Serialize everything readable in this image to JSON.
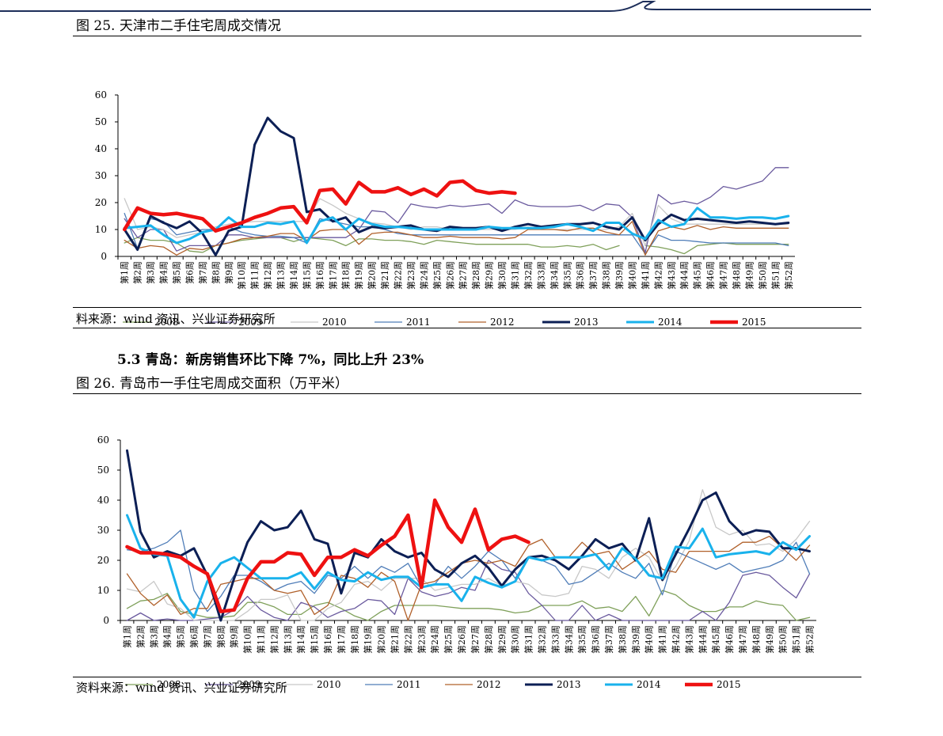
{
  "fig25": {
    "title": "图 25. 天津市二手住宅周成交情况",
    "source": "料来源：wind 资讯、兴业证券研究所"
  },
  "section": {
    "heading": "5.3 青岛：新房销售环比下降 7%，同比上升 23%"
  },
  "fig26": {
    "title": "图 26. 青岛市一手住宅周成交面积（万平米）",
    "source": "资料来源：wind 资讯、兴业证券研究所"
  },
  "colors": {
    "2008": "#7fa05a",
    "2009": "#6a5a9e",
    "2010": "#c8c8c8",
    "2011": "#4f7db8",
    "2012": "#b0602a",
    "2013": "#0c1f55",
    "2014": "#19b2ec",
    "2015": "#ee1111"
  },
  "chart_data": [
    {
      "type": "line",
      "title": "天津市二手住宅周成交情况",
      "categories": [
        "第1周",
        "第2周",
        "第3周",
        "第4周",
        "第5周",
        "第6周",
        "第7周",
        "第8周",
        "第9周",
        "第10周",
        "第11周",
        "第12周",
        "第13周",
        "第14周",
        "第15周",
        "第16周",
        "第17周",
        "第18周",
        "第19周",
        "第20周",
        "第21周",
        "第22周",
        "第23周",
        "第24周",
        "第25周",
        "第26周",
        "第27周",
        "第28周",
        "第29周",
        "第30周",
        "第31周",
        "第32周",
        "第33周",
        "第34周",
        "第35周",
        "第36周",
        "第37周",
        "第38周",
        "第39周",
        "第40周",
        "第41周",
        "第42周",
        "第43周",
        "第44周",
        "第45周",
        "第46周",
        "第47周",
        "第48周",
        "第49周",
        "第50周",
        "第51周",
        "第52周"
      ],
      "ylim": [
        0,
        60
      ],
      "yticks": [
        0,
        10,
        20,
        30,
        40,
        50,
        60
      ],
      "legend_position": "bottom",
      "series": [
        {
          "name": "2008",
          "values": [
            5,
            7,
            6,
            6,
            5,
            2,
            1.5,
            4,
            5,
            6,
            6.5,
            7,
            7,
            5.5,
            7,
            6.5,
            6,
            4,
            6.5,
            6.5,
            6,
            6,
            5.5,
            4.5,
            6,
            5.5,
            5,
            4.5,
            4.5,
            4.5,
            4.5,
            4.5,
            3.5,
            3.5,
            4,
            3.5,
            4.5,
            2.5,
            4,
            null,
            4,
            3.5,
            2.5,
            1,
            4,
            4.5,
            5,
            4.5,
            4.5,
            4.5,
            4.5,
            4.5
          ]
        },
        {
          "name": "2009",
          "values": [
            14,
            7,
            10,
            10,
            2,
            4,
            4,
            4,
            8,
            8,
            7,
            7,
            7,
            7,
            7,
            7,
            7,
            7,
            10,
            17,
            16.5,
            12.5,
            19.5,
            18.5,
            18,
            19,
            18.5,
            19,
            19.5,
            16,
            21,
            19,
            18.5,
            18.5,
            18.5,
            19,
            17,
            19.5,
            19,
            14.5,
            1.5,
            23,
            19.5,
            20.5,
            19.5,
            22,
            26,
            25,
            26.5,
            28,
            33,
            33
          ]
        },
        {
          "name": "2010",
          "values": [
            21.5,
            10,
            11,
            10,
            7,
            8,
            9,
            11,
            12,
            12.5,
            13,
            13,
            13,
            13,
            13,
            21.5,
            19,
            16,
            14,
            12.5,
            12,
            11,
            10,
            11,
            11,
            10,
            10,
            10,
            10,
            10,
            10,
            11,
            10,
            10,
            10,
            10,
            10,
            10,
            11,
            16,
            4,
            19,
            14,
            12,
            12,
            12,
            12,
            12,
            12,
            12,
            12,
            12
          ]
        },
        {
          "name": "2011",
          "values": [
            16,
            3,
            14,
            13,
            8,
            9,
            10,
            10,
            11,
            9,
            8,
            7.5,
            7.5,
            7,
            5,
            14,
            13,
            12,
            11,
            11,
            10,
            8.5,
            8,
            8,
            8,
            8,
            8,
            8,
            8,
            8,
            8,
            8,
            8,
            8,
            8,
            8,
            8,
            8,
            8,
            8,
            1,
            8,
            6,
            6,
            5.5,
            5,
            5,
            5,
            5,
            5,
            5,
            4
          ]
        },
        {
          "name": "2012",
          "values": [
            6,
            3,
            4,
            3.5,
            0.5,
            3,
            2.5,
            4,
            5,
            6.5,
            7,
            7.5,
            8.5,
            8.5,
            6,
            9.5,
            10,
            10,
            4.5,
            8.5,
            9,
            9,
            8,
            7,
            7,
            7.5,
            7,
            7,
            7,
            6.5,
            7,
            10,
            10,
            10,
            9.5,
            10.5,
            10.5,
            9,
            8,
            13,
            0.5,
            9.5,
            11,
            10,
            11.5,
            10,
            11,
            10.5,
            10.5,
            10.5,
            10.5,
            10.5
          ]
        },
        {
          "name": "2013",
          "values": [
            10,
            2.5,
            15,
            12.5,
            10.5,
            13,
            8.5,
            0.5,
            9.5,
            11,
            41.5,
            51.5,
            46.5,
            44,
            16.5,
            17.5,
            13,
            14.5,
            9,
            11,
            10.5,
            11,
            11.5,
            10,
            9.5,
            11,
            10.5,
            10.5,
            11,
            9.5,
            11,
            12,
            11,
            11.5,
            12,
            12,
            12.5,
            11,
            10,
            14.5,
            6,
            12,
            15.5,
            13.5,
            14,
            13.5,
            13,
            12.5,
            13,
            12.5,
            12,
            12.5
          ]
        },
        {
          "name": "2014",
          "values": [
            10.5,
            11,
            11.5,
            8,
            5,
            6.5,
            9,
            10,
            14.5,
            11,
            11,
            12.5,
            12,
            13,
            5,
            13,
            14.5,
            10,
            14,
            12,
            11,
            11,
            10.5,
            10,
            10,
            10,
            10,
            10,
            11,
            10.5,
            10.5,
            10.5,
            10.5,
            11,
            12,
            11,
            9.5,
            12.5,
            12.5,
            8.5,
            6.5,
            13.5,
            11,
            12,
            18,
            14.5,
            14.5,
            14,
            14.5,
            14.5,
            14,
            15
          ]
        },
        {
          "name": "2015",
          "values": [
            10,
            18,
            16,
            15.5,
            16,
            15,
            14,
            9.5,
            11,
            12.5,
            14.5,
            16,
            18,
            18.5,
            12.5,
            24.5,
            25,
            19.5,
            27.5,
            24,
            24,
            25.5,
            23,
            25,
            22.5,
            27.5,
            28,
            24.5,
            23.5,
            24,
            23.5,
            null,
            null,
            null,
            null,
            null,
            null,
            null,
            null,
            null,
            null,
            null,
            null,
            null,
            null,
            null,
            null,
            null,
            null,
            null,
            null,
            null
          ]
        }
      ]
    },
    {
      "type": "line",
      "title": "青岛市一手住宅周成交面积（万平米）",
      "categories": [
        "第1周",
        "第2周",
        "第3周",
        "第4周",
        "第5周",
        "第6周",
        "第7周",
        "第8周",
        "第9周",
        "第10周",
        "第11周",
        "第12周",
        "第13周",
        "第14周",
        "第15周",
        "第16周",
        "第17周",
        "第18周",
        "第19周",
        "第20周",
        "第21周",
        "第22周",
        "第23周",
        "第24周",
        "第25周",
        "第26周",
        "第27周",
        "第28周",
        "第29周",
        "第30周",
        "第31周",
        "第32周",
        "第33周",
        "第34周",
        "第35周",
        "第36周",
        "第37周",
        "第38周",
        "第39周",
        "第40周",
        "第41周",
        "第42周",
        "第43周",
        "第44周",
        "第45周",
        "第46周",
        "第47周",
        "第48周",
        "第49周",
        "第50周",
        "第51周",
        "第52周"
      ],
      "ylim": [
        0,
        60
      ],
      "yticks": [
        0,
        10,
        20,
        30,
        40,
        50,
        60
      ],
      "legend_position": "bottom",
      "series": [
        {
          "name": "2008",
          "values": [
            4,
            6.5,
            7,
            9,
            3,
            2,
            1,
            1,
            1.5,
            6,
            6,
            4.5,
            2,
            2,
            5,
            6,
            4,
            1.5,
            0,
            3,
            5,
            5,
            5,
            5,
            4.5,
            4,
            4,
            4,
            3.5,
            2.5,
            3,
            5,
            5,
            5,
            6.5,
            4,
            4.5,
            3,
            8,
            1.5,
            10,
            8.5,
            5,
            3,
            3,
            4.5,
            4.5,
            6.5,
            5.5,
            5,
            0,
            1
          ]
        },
        {
          "name": "2009",
          "values": [
            0,
            2.5,
            0,
            0.5,
            0,
            0,
            0.5,
            1,
            3.5,
            8,
            3.5,
            1,
            0,
            6,
            4.5,
            1,
            3,
            4,
            7,
            6.5,
            2,
            14,
            9.5,
            8,
            9,
            11,
            10,
            20,
            17,
            16,
            9,
            5,
            0,
            0,
            5,
            0,
            2,
            0,
            0,
            0,
            0,
            0,
            0,
            3,
            0,
            6,
            15,
            16,
            15,
            11,
            7.5,
            15.5
          ]
        },
        {
          "name": "2010",
          "values": [
            10.5,
            9.5,
            13,
            5.5,
            4,
            0,
            0,
            0,
            0,
            3,
            7,
            7,
            8.5,
            0,
            0,
            4,
            6,
            12,
            13,
            10,
            14,
            14,
            14,
            10,
            11,
            12,
            12,
            14,
            11.5,
            13,
            12,
            8.5,
            8,
            9,
            18,
            17,
            14,
            21,
            24,
            21,
            13,
            18,
            26.5,
            43.5,
            31,
            28.5,
            30,
            25,
            25.5,
            23,
            27,
            33
          ]
        },
        {
          "name": "2011",
          "values": [
            23.5,
            23,
            24,
            26,
            30,
            10,
            3,
            8,
            15,
            15,
            13,
            10,
            12,
            13,
            9,
            15,
            14,
            18,
            14,
            18,
            16,
            19,
            11,
            12,
            18,
            14,
            18,
            23,
            20,
            14,
            21,
            20,
            18,
            12,
            13,
            16,
            19,
            16,
            14,
            19,
            8.5,
            23,
            21,
            19,
            17,
            19,
            16,
            17,
            18,
            20,
            26,
            15.5
          ]
        },
        {
          "name": "2012",
          "values": [
            15.5,
            9,
            5,
            8.5,
            2,
            4,
            4,
            12,
            13,
            14,
            14,
            10,
            9,
            10,
            2,
            5,
            15,
            14,
            11,
            16,
            13,
            0,
            12,
            13,
            16,
            19,
            20,
            19,
            20,
            18,
            25,
            27,
            21,
            21,
            26,
            22,
            23,
            17,
            20,
            23,
            17,
            16,
            23,
            23,
            23,
            23,
            26,
            26,
            28,
            24,
            20,
            25
          ]
        },
        {
          "name": "2013",
          "values": [
            56.5,
            29.5,
            21,
            23,
            21.5,
            24,
            15,
            0,
            14,
            26,
            33,
            30,
            31,
            36.5,
            27,
            25.5,
            9,
            22.5,
            21,
            27,
            23,
            21,
            22.5,
            17,
            14.5,
            19,
            21.5,
            17.5,
            11.5,
            17,
            21,
            21.5,
            20,
            17,
            21.5,
            27,
            24,
            25.5,
            20,
            34,
            13.5,
            22,
            30.5,
            40,
            42.5,
            33,
            28.5,
            30,
            29.5,
            24,
            24,
            23
          ]
        },
        {
          "name": "2014",
          "values": [
            35,
            24,
            22,
            21.5,
            7,
            1,
            13,
            19,
            21,
            17.5,
            14,
            14,
            14,
            16,
            10.5,
            16,
            13.5,
            13,
            16,
            13.5,
            14.5,
            14.5,
            11,
            12,
            12,
            6.5,
            14.5,
            12.5,
            11,
            13,
            21,
            20,
            21,
            21,
            21,
            22,
            17,
            24,
            20.5,
            15,
            14,
            24.5,
            24,
            30.5,
            21,
            22,
            22.5,
            23,
            22,
            26,
            23.5,
            28
          ]
        },
        {
          "name": "2015",
          "values": [
            24.5,
            22.5,
            22.5,
            22,
            21,
            18,
            15.5,
            3,
            3.5,
            14,
            19.5,
            19.5,
            22.5,
            22,
            15,
            21,
            21,
            23.5,
            21.5,
            25,
            28,
            35,
            11,
            40,
            31,
            26,
            37,
            23.5,
            27,
            28,
            26,
            null,
            null,
            null,
            null,
            null,
            null,
            null,
            null,
            null,
            null,
            null,
            null,
            null,
            null,
            null,
            null,
            null,
            null,
            null,
            null,
            null
          ]
        }
      ]
    }
  ]
}
